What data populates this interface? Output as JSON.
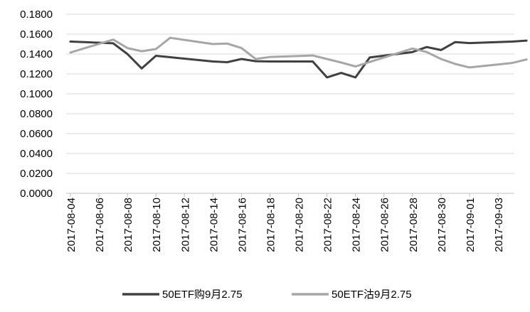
{
  "chart_data": {
    "type": "line",
    "title": "",
    "xlabel": "",
    "ylabel": "",
    "ylim": [
      0,
      0.18
    ],
    "y_ticks": [
      "0.0000",
      "0.0200",
      "0.0400",
      "0.0600",
      "0.0800",
      "0.1000",
      "0.1200",
      "0.1400",
      "0.1600",
      "0.1800"
    ],
    "x": [
      "2017-08-04",
      "2017-08-07",
      "2017-08-08",
      "2017-08-09",
      "2017-08-10",
      "2017-08-11",
      "2017-08-14",
      "2017-08-15",
      "2017-08-16",
      "2017-08-17",
      "2017-08-18",
      "2017-08-21",
      "2017-08-22",
      "2017-08-23",
      "2017-08-24",
      "2017-08-25",
      "2017-08-28",
      "2017-08-29",
      "2017-08-30",
      "2017-08-31",
      "2017-09-01",
      "2017-09-04",
      "2017-09-05"
    ],
    "x_tick_labels": [
      "2017-08-04",
      "2017-08-06",
      "2017-08-08",
      "2017-08-10",
      "2017-08-12",
      "2017-08-14",
      "2017-08-16",
      "2017-08-18",
      "2017-08-20",
      "2017-08-22",
      "2017-08-24",
      "2017-08-26",
      "2017-08-28",
      "2017-08-30",
      "2017-09-01",
      "2017-09-03"
    ],
    "grid": true,
    "legend_position": "bottom",
    "series": [
      {
        "name": "50ETF购9月2.75",
        "color": "#404040",
        "values": [
          0.1525,
          0.1508,
          0.14,
          0.1255,
          0.1382,
          0.1368,
          0.1325,
          0.1318,
          0.135,
          0.1328,
          0.1325,
          0.1325,
          0.1165,
          0.121,
          0.1165,
          0.1365,
          0.142,
          0.147,
          0.144,
          0.152,
          0.151,
          0.1525,
          0.1535
        ]
      },
      {
        "name": "50ETF沽9月2.75",
        "color": "#a6a6a6",
        "values": [
          0.1415,
          0.1545,
          0.146,
          0.1428,
          0.145,
          0.1563,
          0.15,
          0.1505,
          0.146,
          0.135,
          0.137,
          0.1385,
          0.135,
          0.1315,
          0.1275,
          0.132,
          0.1455,
          0.142,
          0.135,
          0.13,
          0.1265,
          0.131,
          0.1345
        ]
      }
    ]
  }
}
